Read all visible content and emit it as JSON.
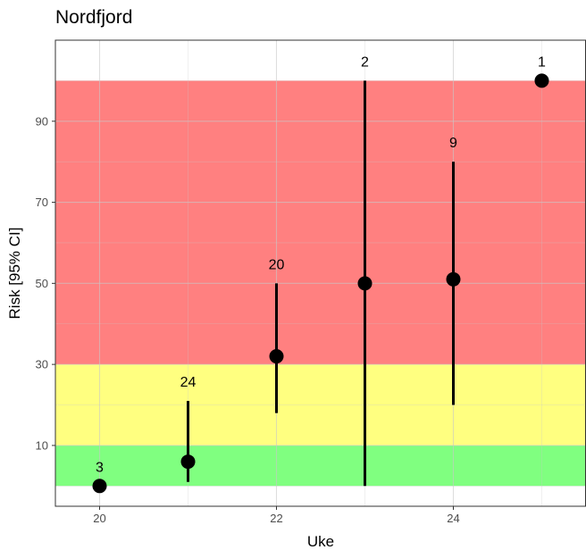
{
  "chart_data": {
    "type": "scatter",
    "title": "Nordfjord",
    "xlabel": "Uke",
    "ylabel": "Risk [95% CI]",
    "xlim": [
      19.5,
      25.5
    ],
    "ylim": [
      -5,
      110
    ],
    "x_ticks": [
      20,
      22,
      24
    ],
    "y_ticks": [
      10,
      30,
      50,
      70,
      90
    ],
    "grid": true,
    "bands": [
      {
        "from": 0,
        "to": 10,
        "color": "#80ff80"
      },
      {
        "from": 10,
        "to": 30,
        "color": "#ffff80"
      },
      {
        "from": 30,
        "to": 100,
        "color": "#ff8080"
      }
    ],
    "points": [
      {
        "x": 20,
        "y": 0,
        "lower": 0,
        "upper": 0,
        "n": "3"
      },
      {
        "x": 21,
        "y": 6,
        "lower": 1,
        "upper": 21,
        "n": "24"
      },
      {
        "x": 22,
        "y": 32,
        "lower": 18,
        "upper": 50,
        "n": "20"
      },
      {
        "x": 23,
        "y": 50,
        "lower": 0,
        "upper": 100,
        "n": "2"
      },
      {
        "x": 24,
        "y": 51,
        "lower": 20,
        "upper": 80,
        "n": "9"
      },
      {
        "x": 25,
        "y": 100,
        "lower": 100,
        "upper": 100,
        "n": "1"
      }
    ],
    "colors": {
      "points": "#000000",
      "grid": "#ebebeb",
      "panel_border": "#333333"
    }
  }
}
